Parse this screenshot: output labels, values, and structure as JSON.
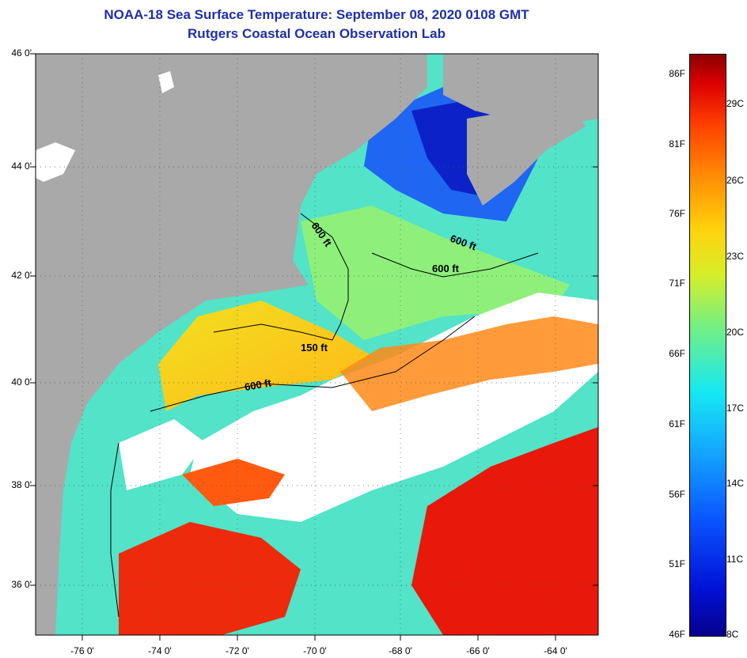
{
  "title": "NOAA-18 Sea Surface Temperature:  September 08, 2020 0108 GMT",
  "subtitle": "Rutgers Coastal Ocean Observation Lab",
  "latitude_labels": [
    "46 0'",
    "44 0'",
    "42 0'",
    "40 0'",
    "38 0'",
    "36 0'"
  ],
  "longitude_labels": [
    "-76 0'",
    "-74 0'",
    "-72 0'",
    "-70 0'",
    "-68 0'",
    "-66 0'",
    "-64 0'"
  ],
  "depth_contour_labels": [
    "600 ft",
    "600 ft",
    "600 ft",
    "150 ft",
    "600 ft"
  ],
  "colorbar": {
    "fahrenheit_labels": [
      "86F",
      "81F",
      "76F",
      "71F",
      "66F",
      "61F",
      "56F",
      "51F",
      "46F"
    ],
    "celsius_labels": [
      "29C",
      "26C",
      "23C",
      "20C",
      "17C",
      "14C",
      "11C",
      "8C"
    ]
  },
  "colors": {
    "title": "#1f2fa8",
    "land": "#a9a9a9",
    "cloud": "#ffffff",
    "cold": "#0010c8",
    "cool": "#1ee0f0",
    "mild": "#d8f030",
    "warm": "#ff9a10",
    "hot": "#e81000"
  }
}
